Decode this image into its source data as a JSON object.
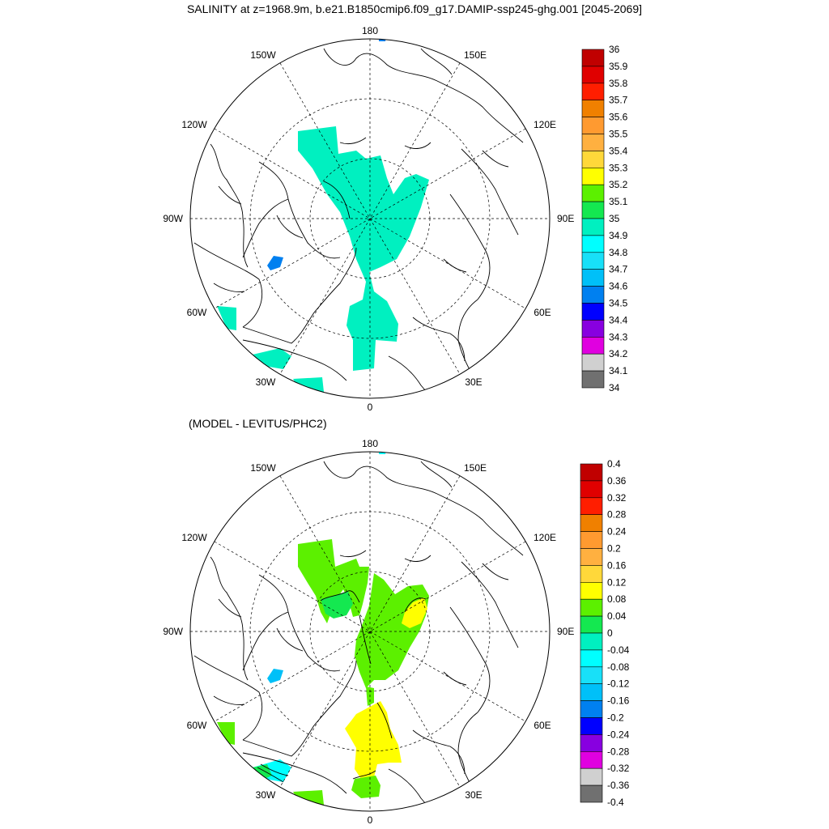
{
  "title": "SALINITY at z=1968.9m, b.e21.B1850cmip6.f09_g17.DAMIP-ssp245-ghg.001 [2045-2069]",
  "subtitle": "(MODEL - LEVITUS/PHC2)",
  "lon_labels": {
    "top": "180",
    "bottom": "0",
    "left": "90W",
    "right": "90E",
    "ul1": "150W",
    "ul2": "120W",
    "ur1": "150E",
    "ur2": "120E",
    "ll1": "60W",
    "ll2": "30W",
    "lr1": "60E",
    "lr2": "30E"
  },
  "colorbar_top": {
    "labels": [
      "36",
      "35.9",
      "35.8",
      "35.7",
      "35.6",
      "35.5",
      "35.4",
      "35.3",
      "35.2",
      "35.1",
      "35",
      "34.9",
      "34.8",
      "34.7",
      "34.6",
      "34.5",
      "34.4",
      "34.3",
      "34.2",
      "34.1",
      "34"
    ],
    "colors": [
      "#c00000",
      "#e00000",
      "#ff1e00",
      "#f08000",
      "#ff9a30",
      "#ffb040",
      "#ffd83a",
      "#ffff00",
      "#5cf000",
      "#14e850",
      "#00f0c0",
      "#00ffff",
      "#18e0f8",
      "#00c0f8",
      "#0080f0",
      "#0000ff",
      "#8800e0",
      "#e000e0",
      "#d0d0d0",
      "#707070"
    ]
  },
  "colorbar_bottom": {
    "labels": [
      "0.4",
      "0.36",
      "0.32",
      "0.28",
      "0.24",
      "0.2",
      "0.16",
      "0.12",
      "0.08",
      "0.04",
      "0",
      "-0.04",
      "-0.08",
      "-0.12",
      "-0.16",
      "-0.2",
      "-0.24",
      "-0.28",
      "-0.32",
      "-0.36",
      "-0.4"
    ],
    "colors": [
      "#c00000",
      "#e00000",
      "#ff1e00",
      "#f08000",
      "#ff9a30",
      "#ffb040",
      "#ffd83a",
      "#ffff00",
      "#5cf000",
      "#14e850",
      "#00f0c0",
      "#00ffff",
      "#18e0f8",
      "#00c0f8",
      "#0080f0",
      "#0000ff",
      "#8800e0",
      "#e000e0",
      "#d0d0d0",
      "#707070"
    ]
  },
  "fill_colors": {
    "top_main": "#00f0c0",
    "top_blue": "#0080f0",
    "bottom_green": "#5cf000",
    "bottom_green2": "#14e850",
    "bottom_yellow": "#ffff00",
    "bottom_cyan": "#00ffff",
    "bottom_blue": "#00c0f8"
  }
}
